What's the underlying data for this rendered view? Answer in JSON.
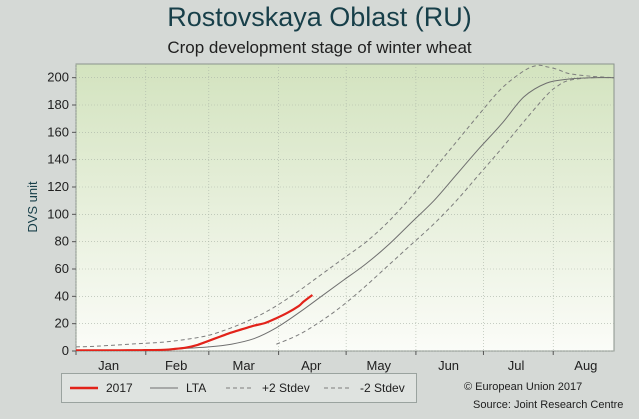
{
  "title": "Rostovskaya Oblast (RU)",
  "subtitle": "Crop development stage of winter wheat",
  "credit_line_1": "© European Union 2017",
  "credit_line_2": "Source: Joint Research Centre",
  "colors": {
    "series_2017": "#e2231a",
    "lta": "#6f6f6f",
    "stdev": "#7d7d7d",
    "grid": "#a9b3a6"
  },
  "chart_data": {
    "type": "line",
    "title": "Rostovskaya Oblast (RU)",
    "subtitle": "Crop development stage of winter wheat",
    "xlabel": "",
    "ylabel": "DVS unit",
    "ylim": [
      0,
      210
    ],
    "yticks": [
      0,
      20,
      40,
      60,
      80,
      100,
      120,
      140,
      160,
      180,
      200
    ],
    "xlim": [
      1,
      240
    ],
    "month_labels": [
      {
        "label": "Jan",
        "x": 15.5
      },
      {
        "label": "Feb",
        "x": 45.5
      },
      {
        "label": "Mar",
        "x": 75.5
      },
      {
        "label": "Apr",
        "x": 105.5
      },
      {
        "label": "May",
        "x": 135.5
      },
      {
        "label": "Jun",
        "x": 166.5
      },
      {
        "label": "Jul",
        "x": 196.5
      },
      {
        "label": "Aug",
        "x": 227.5
      }
    ],
    "month_boundaries": [
      1,
      32,
      60,
      91,
      121,
      152,
      182,
      213
    ],
    "grid": true,
    "legend_position": "bottom",
    "series": [
      {
        "name": "2017",
        "style": "solid-thick",
        "x": [
          1,
          20,
          30,
          40,
          45,
          50,
          55,
          60,
          65,
          70,
          75,
          80,
          85,
          90,
          95,
          100,
          102,
          106
        ],
        "y": [
          0.5,
          0.5,
          0.6,
          0.9,
          1.5,
          2.5,
          4.5,
          7.5,
          10.5,
          13.5,
          16,
          18.5,
          20.5,
          24,
          28,
          33,
          36,
          41
        ]
      },
      {
        "name": "LTA",
        "style": "solid-thin",
        "x": [
          1,
          20,
          40,
          50,
          60,
          70,
          80,
          90,
          100,
          110,
          120,
          130,
          140,
          150,
          160,
          170,
          180,
          190,
          200,
          210,
          220,
          230,
          240
        ],
        "y": [
          0,
          0,
          1,
          2,
          3,
          5,
          9,
          17,
          28,
          40,
          52,
          64,
          78,
          94,
          110,
          129,
          148,
          166,
          186,
          196,
          199,
          200,
          200
        ]
      },
      {
        "name": "+2 Stdev",
        "style": "dashed",
        "x": [
          1,
          10,
          20,
          30,
          40,
          50,
          60,
          70,
          80,
          90,
          100,
          110,
          120,
          130,
          140,
          150,
          160,
          170,
          180,
          190,
          200,
          206,
          210,
          215,
          220,
          230,
          240
        ],
        "y": [
          3,
          3.5,
          4.5,
          5.5,
          6.5,
          8.5,
          11.5,
          17,
          24,
          33,
          44,
          56,
          68,
          80,
          95,
          113,
          133,
          153,
          173,
          192,
          205,
          209,
          208,
          206,
          203,
          201,
          200
        ]
      },
      {
        "name": "-2 Stdev",
        "style": "dashed",
        "x": [
          90,
          100,
          110,
          120,
          130,
          140,
          150,
          160,
          170,
          180,
          190,
          200,
          210,
          215,
          220,
          230,
          240
        ],
        "y": [
          5,
          12,
          22,
          34,
          48,
          63,
          78,
          93,
          110,
          129,
          148,
          168,
          187,
          194,
          198,
          200,
          200
        ]
      }
    ]
  }
}
